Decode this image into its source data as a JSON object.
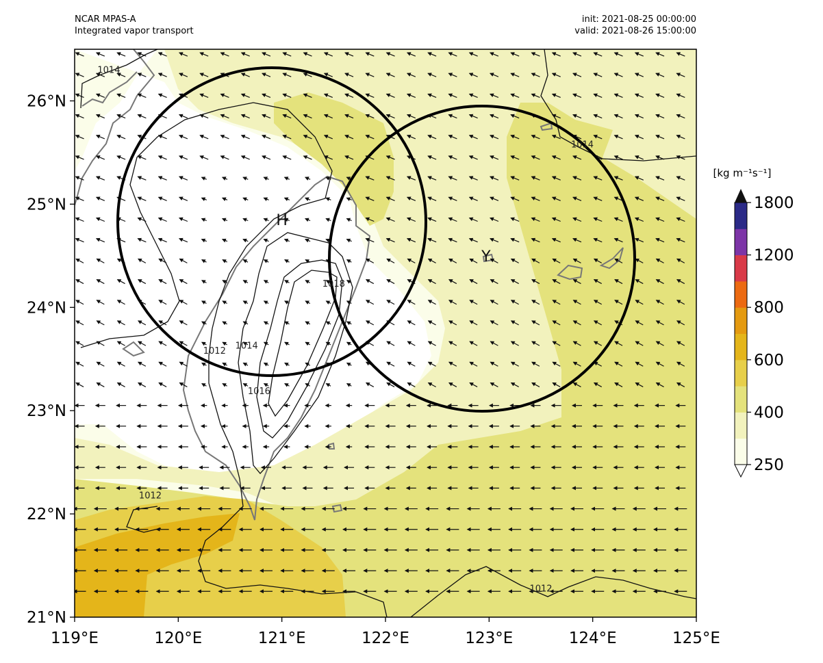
{
  "header": {
    "model": "NCAR MPAS-A",
    "field": "Integrated vapor transport",
    "init": "init: 2021-08-25 00:00:00",
    "valid": "valid: 2021-08-26 15:00:00"
  },
  "map": {
    "lon_range": [
      119,
      125
    ],
    "lat_range": [
      21,
      26.5
    ],
    "x_ticks": [
      "119°E",
      "120°E",
      "121°E",
      "122°E",
      "123°E",
      "124°E",
      "125°E"
    ],
    "y_ticks": [
      "21°N",
      "22°N",
      "23°N",
      "24°N",
      "25°N",
      "26°N"
    ],
    "x_tick_values": [
      119,
      120,
      121,
      122,
      123,
      124,
      125
    ],
    "y_tick_values": [
      21,
      22,
      23,
      24,
      25,
      26
    ],
    "markers": [
      {
        "label": "H",
        "lon": 121.0,
        "lat": 24.85
      },
      {
        "label": "Y",
        "lon": 122.97,
        "lat": 24.5
      }
    ],
    "circles": [
      {
        "lon": 120.92,
        "lat": 24.83
      },
      {
        "lon": 122.95,
        "lat": 24.47
      }
    ],
    "isobar_labels": [
      {
        "text": "1014",
        "lon": 119.33,
        "lat": 26.27
      },
      {
        "text": "1014",
        "lon": 123.9,
        "lat": 25.55
      },
      {
        "text": "1018",
        "lon": 121.5,
        "lat": 24.2
      },
      {
        "text": "1014",
        "lon": 120.66,
        "lat": 23.6
      },
      {
        "text": "1012",
        "lon": 120.35,
        "lat": 23.55
      },
      {
        "text": "1016",
        "lon": 120.78,
        "lat": 23.16
      },
      {
        "text": "1012",
        "lon": 119.73,
        "lat": 22.15
      },
      {
        "text": "1012",
        "lon": 123.5,
        "lat": 21.25
      }
    ]
  },
  "colorbar": {
    "unit": "[kg m⁻¹s⁻¹]",
    "tick_labels": [
      "250",
      "400",
      "600",
      "800",
      "1200",
      "1800"
    ],
    "levels": [
      250,
      300,
      400,
      500,
      600,
      700,
      800,
      1000,
      1200,
      1500,
      1800
    ],
    "colors": [
      "#fbfde9",
      "#f2f2bd",
      "#e4e27c",
      "#e7cf4a",
      "#e4b51a",
      "#e49a10",
      "#ec6a12",
      "#d93a48",
      "#7d35a7",
      "#2b2a87"
    ],
    "over_color": "#111111",
    "under_color": "#ffffff"
  }
}
